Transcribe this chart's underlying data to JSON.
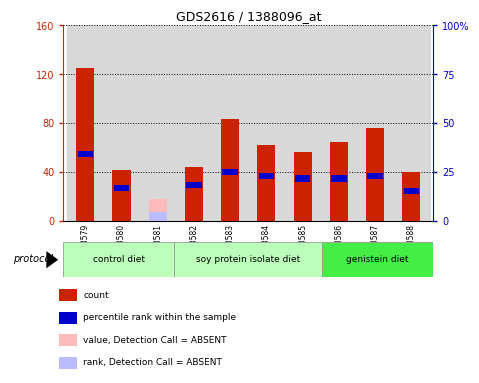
{
  "title": "GDS2616 / 1388096_at",
  "samples": [
    "GSM158579",
    "GSM158580",
    "GSM158581",
    "GSM158582",
    "GSM158583",
    "GSM158584",
    "GSM158585",
    "GSM158586",
    "GSM158587",
    "GSM158588"
  ],
  "count_values": [
    125,
    42,
    0,
    44,
    84,
    62,
    57,
    65,
    76,
    40
  ],
  "rank_values": [
    55,
    27,
    0,
    30,
    40,
    37,
    35,
    35,
    37,
    25
  ],
  "absent_value": [
    0,
    0,
    18,
    0,
    0,
    0,
    0,
    0,
    0,
    0
  ],
  "absent_rank_val": [
    0,
    0,
    8,
    0,
    0,
    0,
    0,
    0,
    0,
    0
  ],
  "is_absent": [
    false,
    false,
    true,
    false,
    false,
    false,
    false,
    false,
    false,
    false
  ],
  "left_ylim": [
    0,
    160
  ],
  "right_ylim": [
    0,
    100
  ],
  "left_yticks": [
    0,
    40,
    80,
    120,
    160
  ],
  "right_yticks": [
    0,
    25,
    50,
    75,
    100
  ],
  "right_yticklabels": [
    "0",
    "25",
    "50",
    "75",
    "100%"
  ],
  "bar_width": 0.5,
  "bar_color_count": "#cc2200",
  "bar_color_rank": "#0000cc",
  "bar_color_absent_value": "#ffbbbb",
  "bar_color_absent_rank": "#bbbbff",
  "left_axis_color": "#cc2200",
  "right_axis_color": "#0000cc",
  "chart_bg": "#ffffff",
  "col_bg": "#d8d8d8",
  "protocol_label": "protocol",
  "group_info": [
    {
      "label": "control diet",
      "indices": [
        0,
        1,
        2
      ],
      "color": "#bbffbb"
    },
    {
      "label": "soy protein isolate diet",
      "indices": [
        3,
        4,
        5,
        6
      ],
      "color": "#bbffbb"
    },
    {
      "label": "genistein diet",
      "indices": [
        7,
        8,
        9
      ],
      "color": "#44ee44"
    }
  ],
  "legend_items": [
    {
      "label": "count",
      "color": "#cc2200"
    },
    {
      "label": "percentile rank within the sample",
      "color": "#0000cc"
    },
    {
      "label": "value, Detection Call = ABSENT",
      "color": "#ffbbbb"
    },
    {
      "label": "rank, Detection Call = ABSENT",
      "color": "#bbbbff"
    }
  ]
}
